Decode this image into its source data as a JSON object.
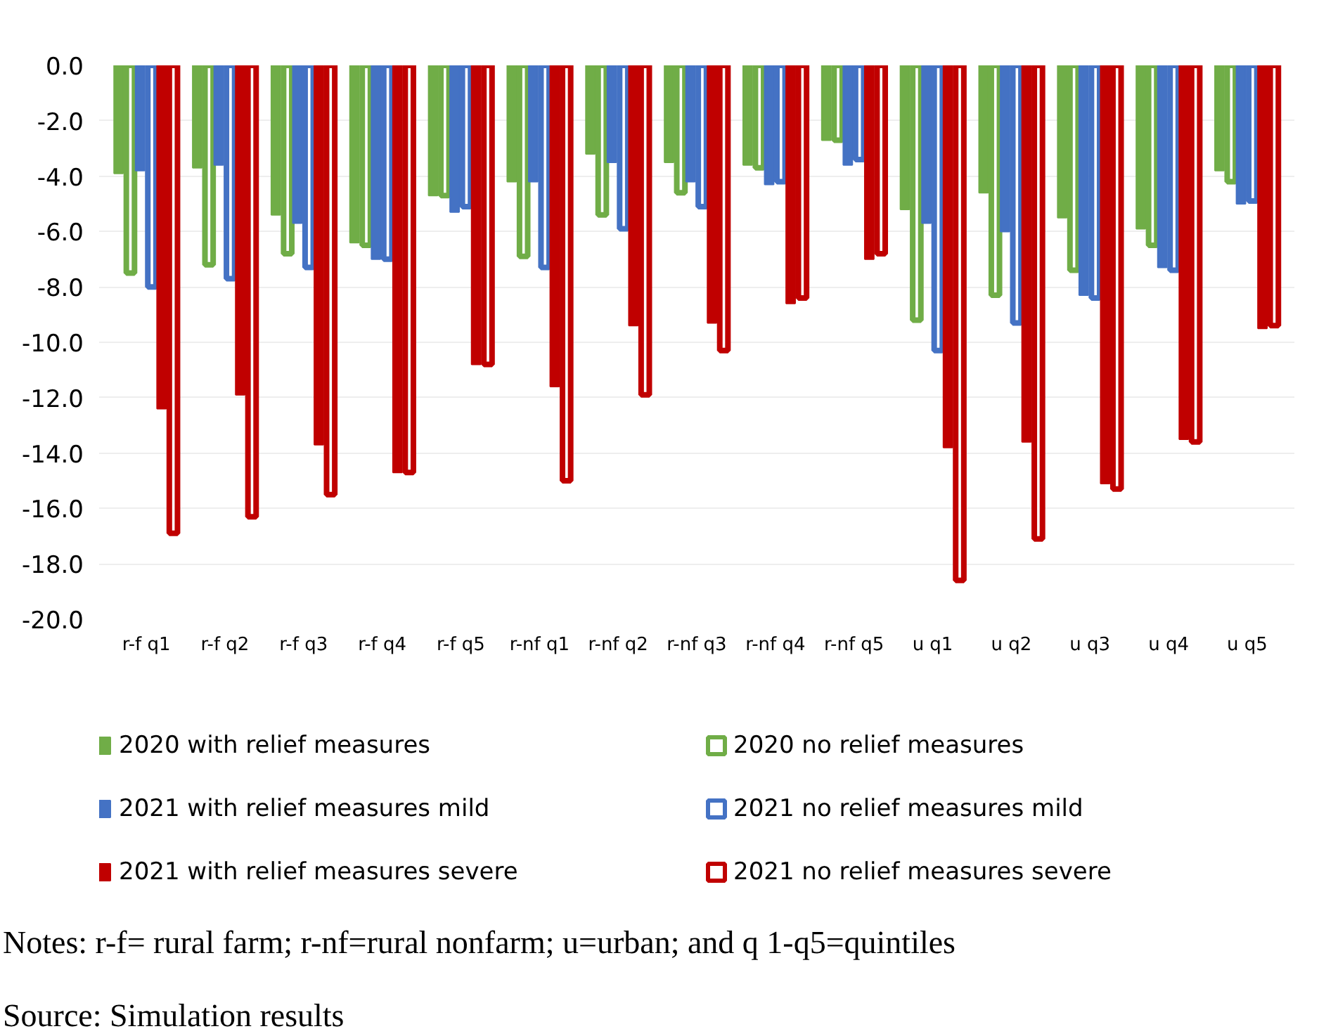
{
  "chart_data": {
    "type": "bar",
    "categories": [
      "r-f q1",
      "r-f q2",
      "r-f q3",
      "r-f q4",
      "r-f q5",
      "r-nf q1",
      "r-nf q2",
      "r-nf q3",
      "r-nf q4",
      "r-nf q5",
      "u q1",
      "u q2",
      "u q3",
      "u q4",
      "u q5"
    ],
    "series": [
      {
        "name": "2020 with relief measures",
        "color": "#70ad47",
        "values": [
          -3.9,
          -3.7,
          -5.4,
          -6.4,
          -4.7,
          -4.2,
          -3.2,
          -3.5,
          -3.6,
          -2.7,
          -5.2,
          -4.6,
          -5.5,
          -5.9,
          -3.8
        ]
      },
      {
        "name": "2020 no relief measures",
        "color": "#70ad47",
        "values": [
          -7.5,
          -7.2,
          -6.8,
          -6.5,
          -4.7,
          -6.9,
          -5.4,
          -4.6,
          -3.7,
          -2.7,
          -9.2,
          -8.3,
          -7.4,
          -6.5,
          -4.2
        ]
      },
      {
        "name": "2021 with relief measures mild",
        "color": "#4472c4",
        "values": [
          -3.8,
          -3.6,
          -5.7,
          -7.0,
          -5.3,
          -4.2,
          -3.5,
          -4.2,
          -4.3,
          -3.6,
          -5.7,
          -6.0,
          -8.3,
          -7.3,
          -5.0
        ]
      },
      {
        "name": "2021 no relief measures mild",
        "color": "#4472c4",
        "values": [
          -8.0,
          -7.7,
          -7.3,
          -7.0,
          -5.1,
          -7.3,
          -5.9,
          -5.1,
          -4.2,
          -3.4,
          -10.3,
          -9.3,
          -8.4,
          -7.4,
          -4.9
        ]
      },
      {
        "name": "2021 with relief measures severe",
        "color": "#c00000",
        "values": [
          -12.4,
          -11.9,
          -13.7,
          -14.7,
          -10.8,
          -11.6,
          -9.4,
          -9.3,
          -8.6,
          -7.0,
          -13.8,
          -13.6,
          -15.1,
          -13.5,
          -9.5
        ]
      },
      {
        "name": "2021 no relief measures severe",
        "color": "#c00000",
        "values": [
          -16.9,
          -16.3,
          -15.5,
          -14.7,
          -10.8,
          -15.0,
          -11.9,
          -10.3,
          -8.4,
          -6.8,
          -18.6,
          -17.1,
          -15.3,
          -13.6,
          -9.4
        ]
      }
    ],
    "ylim": [
      -20,
      0
    ],
    "yticks": [
      {
        "value": 0,
        "label": "0.0"
      },
      {
        "value": -2,
        "label": "-2.0"
      },
      {
        "value": -4,
        "label": "-4.0"
      },
      {
        "value": -6,
        "label": "-6.0"
      },
      {
        "value": -8,
        "label": "-8.0"
      },
      {
        "value": -10,
        "label": "-10.0"
      },
      {
        "value": -12,
        "label": "-12.0"
      },
      {
        "value": -14,
        "label": "-14.0"
      },
      {
        "value": -16,
        "label": "-16.0"
      },
      {
        "value": -18,
        "label": "-18.0"
      },
      {
        "value": -20,
        "label": "-20.0"
      }
    ],
    "grid": "y",
    "legend": "bottom",
    "annotations": [
      "Notes: r-f= rural farm; r-nf=rural nonfarm; u=urban; and q 1-q5=quintiles",
      "Source: Simulation results"
    ]
  }
}
